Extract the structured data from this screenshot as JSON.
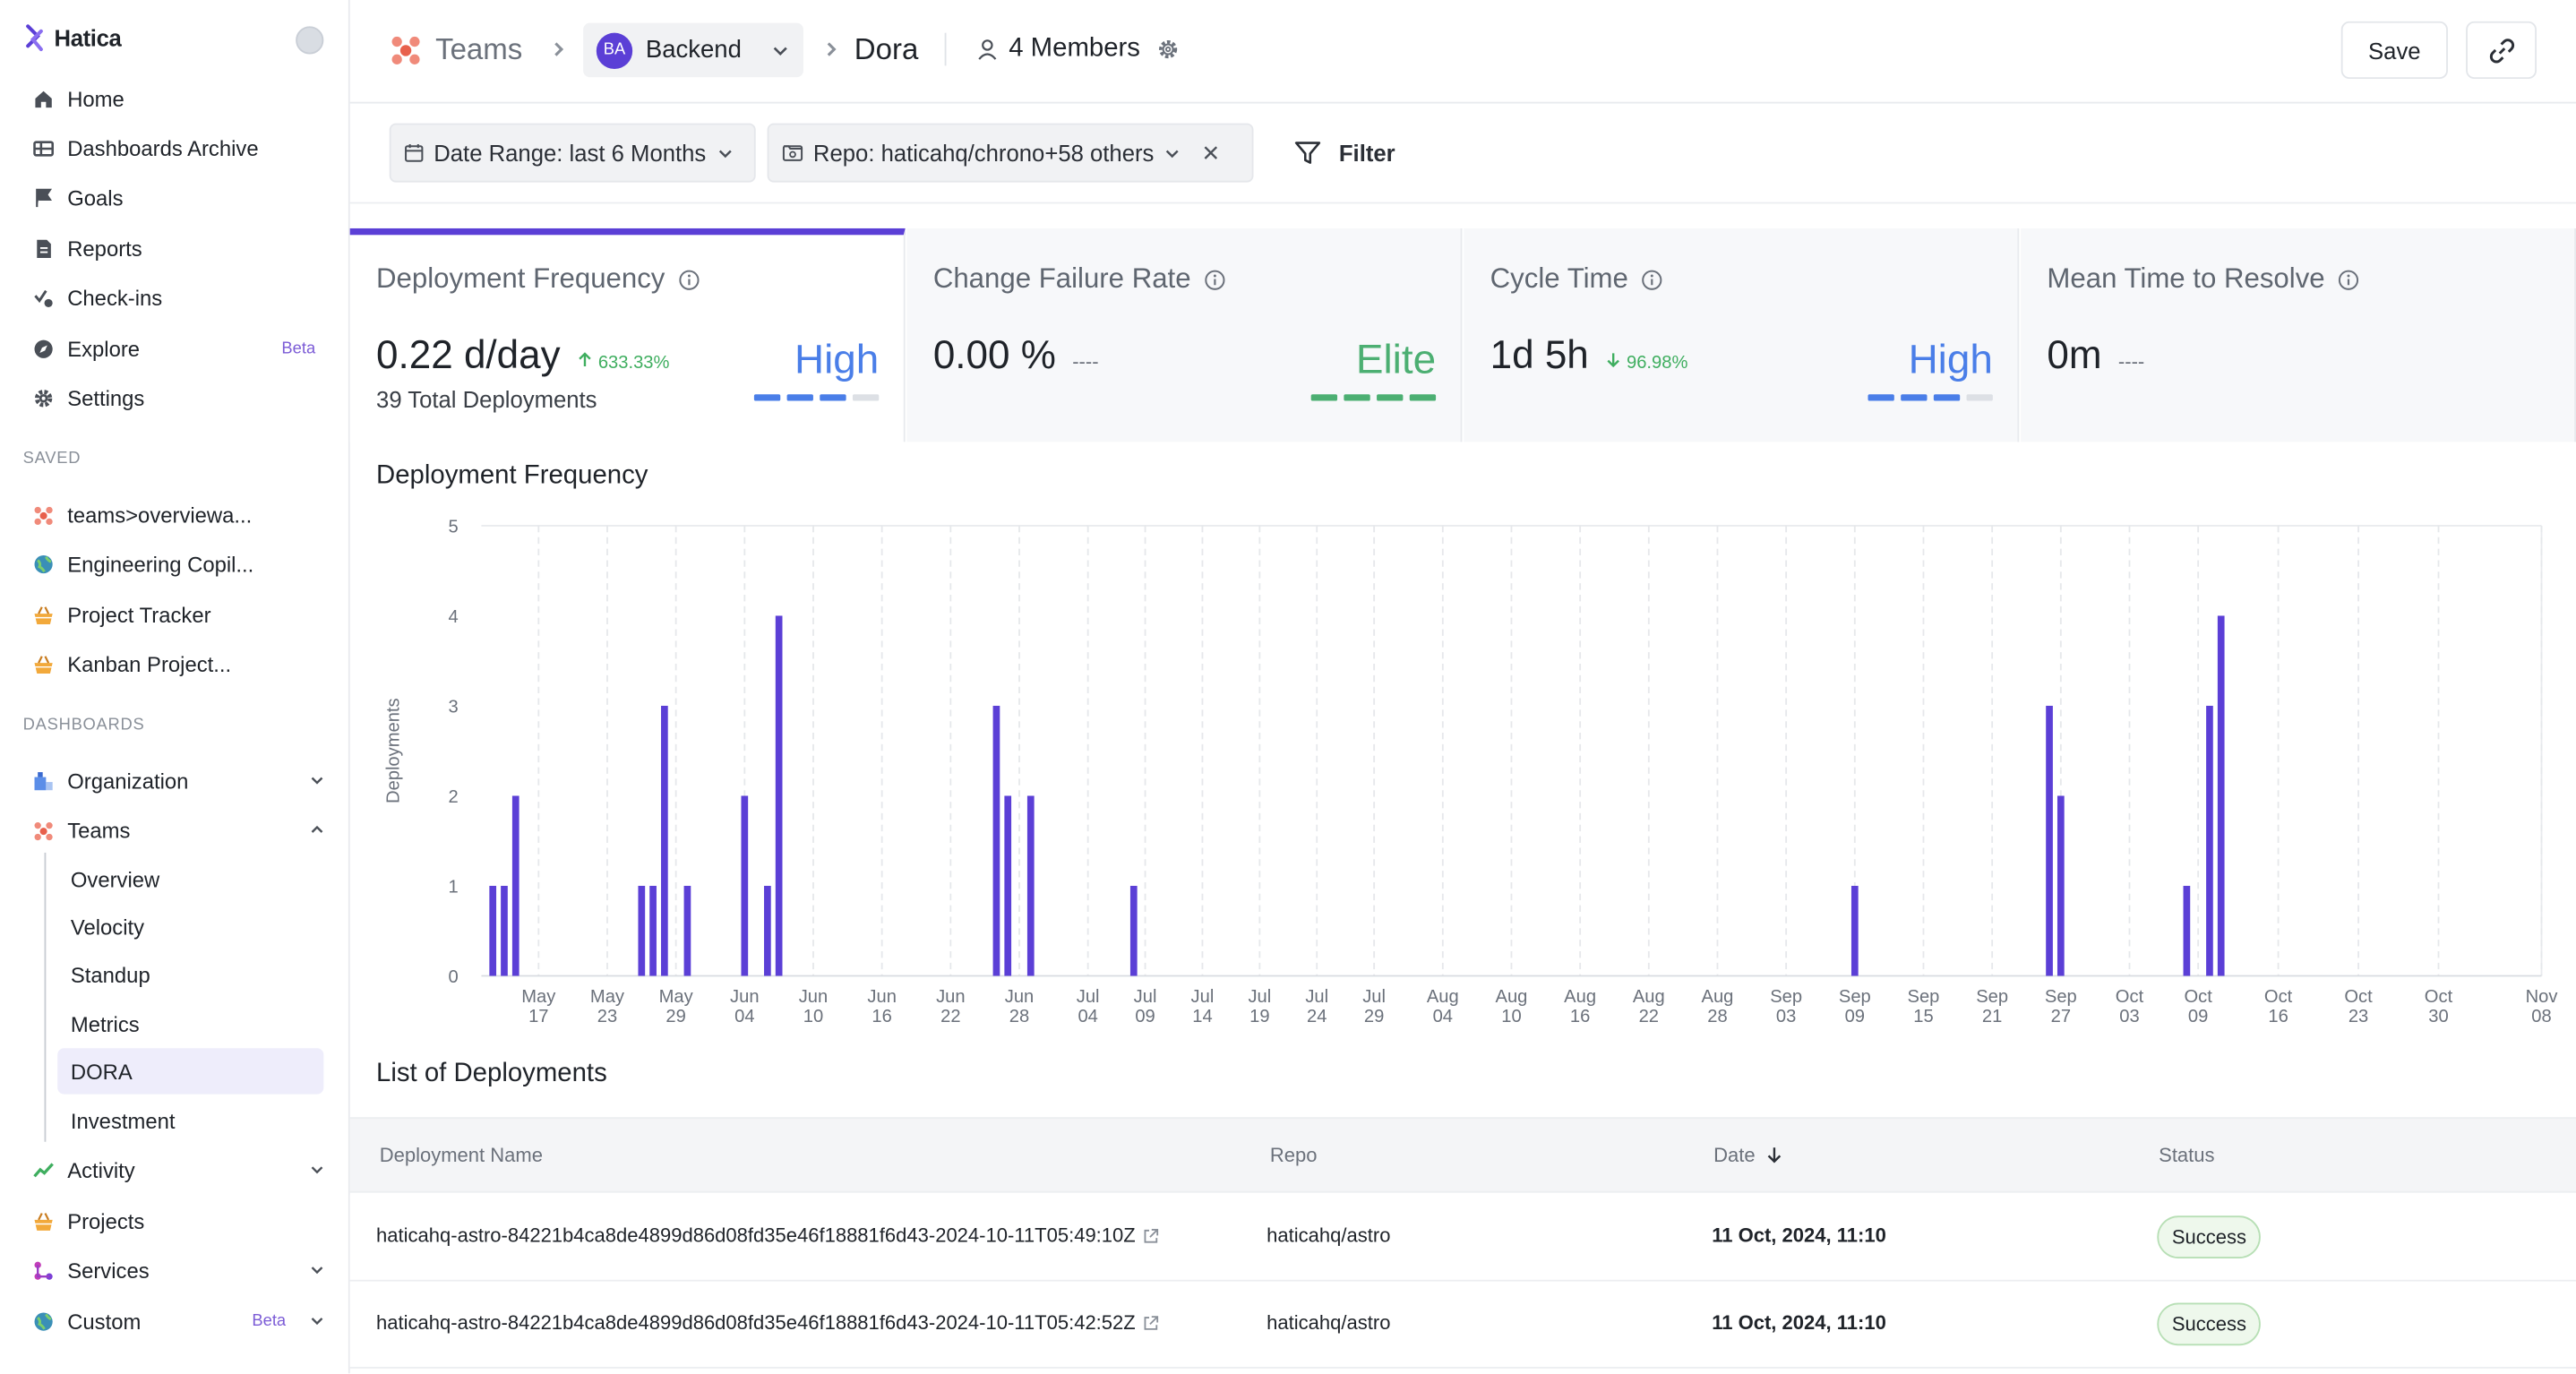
{
  "brand": {
    "name": "Hatica"
  },
  "sidebar": {
    "main_items": [
      {
        "label": "Home",
        "icon": "home-icon"
      },
      {
        "label": "Dashboards Archive",
        "icon": "archive-icon"
      },
      {
        "label": "Goals",
        "icon": "flag-icon"
      },
      {
        "label": "Reports",
        "icon": "report-icon"
      },
      {
        "label": "Check-ins",
        "icon": "checkin-icon"
      },
      {
        "label": "Explore",
        "icon": "compass-icon",
        "badge": "Beta"
      },
      {
        "label": "Settings",
        "icon": "gear-icon"
      }
    ],
    "saved_label": "SAVED",
    "saved_items": [
      {
        "label": "teams>overviewa...",
        "icon": "team-dots-icon"
      },
      {
        "label": "Engineering Copil...",
        "icon": "globe-icon"
      },
      {
        "label": "Project Tracker",
        "icon": "basket-icon"
      },
      {
        "label": "Kanban Project...",
        "icon": "basket-icon"
      }
    ],
    "dashboards_label": "DASHBOARDS",
    "dashboard_items": {
      "organization": "Organization",
      "teams": "Teams",
      "activity": "Activity",
      "projects": "Projects",
      "services": "Services",
      "custom": "Custom",
      "custom_badge": "Beta"
    },
    "teams_sub": [
      "Overview",
      "Velocity",
      "Standup",
      "Metrics",
      "DORA",
      "Investment"
    ],
    "active_sub": "DORA"
  },
  "header": {
    "teams": "Teams",
    "team_initials": "BA",
    "team_name": "Backend",
    "page": "Dora",
    "members": "4 Members",
    "save_label": "Save"
  },
  "filters": {
    "date_range": "Date Range: last 6 Months",
    "repo": "Repo: haticahq/chrono+58 others",
    "filter_label": "Filter"
  },
  "metrics": [
    {
      "title": "Deployment Frequency",
      "value": "0.22 d/day",
      "change": "633.33%",
      "change_dir": "up",
      "subtext": "39 Total Deployments",
      "level": "High",
      "level_color": "#4a7ee8",
      "filled": 3,
      "active": true
    },
    {
      "title": "Change Failure Rate",
      "value": "0.00 %",
      "change": "----",
      "change_dir": "none",
      "subtext": "",
      "level": "Elite",
      "level_color": "#4caf72",
      "filled": 4,
      "active": false
    },
    {
      "title": "Cycle Time",
      "value": "1d 5h",
      "change": "96.98%",
      "change_dir": "down",
      "subtext": "",
      "level": "High",
      "level_color": "#4a7ee8",
      "filled": 3,
      "active": false
    },
    {
      "title": "Mean Time to Resolve",
      "value": "0m",
      "change": "----",
      "change_dir": "none",
      "subtext": "",
      "level": "",
      "level_color": "",
      "filled": 0,
      "active": false
    }
  ],
  "chart_title": "Deployment Frequency",
  "chart_data": {
    "type": "bar",
    "title": "Deployment Frequency",
    "xlabel": "",
    "ylabel": "Deployments",
    "ylim": [
      0,
      5
    ],
    "yticks": [
      0,
      1,
      2,
      3,
      4,
      5
    ],
    "x_start": "2024-05-12",
    "x_end": "2024-11-08",
    "x_ticks": [
      [
        "May",
        "17"
      ],
      [
        "May",
        "23"
      ],
      [
        "May",
        "29"
      ],
      [
        "Jun",
        "04"
      ],
      [
        "Jun",
        "10"
      ],
      [
        "Jun",
        "16"
      ],
      [
        "Jun",
        "22"
      ],
      [
        "Jun",
        "28"
      ],
      [
        "Jul",
        "04"
      ],
      [
        "Jul",
        "09"
      ],
      [
        "Jul",
        "14"
      ],
      [
        "Jul",
        "19"
      ],
      [
        "Jul",
        "24"
      ],
      [
        "Jul",
        "29"
      ],
      [
        "Aug",
        "04"
      ],
      [
        "Aug",
        "10"
      ],
      [
        "Aug",
        "16"
      ],
      [
        "Aug",
        "22"
      ],
      [
        "Aug",
        "28"
      ],
      [
        "Sep",
        "03"
      ],
      [
        "Sep",
        "09"
      ],
      [
        "Sep",
        "15"
      ],
      [
        "Sep",
        "21"
      ],
      [
        "Sep",
        "27"
      ],
      [
        "Oct",
        "03"
      ],
      [
        "Oct",
        "09"
      ],
      [
        "Oct",
        "16"
      ],
      [
        "Oct",
        "23"
      ],
      [
        "Oct",
        "30"
      ],
      [
        "Nov",
        "08"
      ]
    ],
    "bars": [
      {
        "date": "2024-05-13",
        "value": 1
      },
      {
        "date": "2024-05-14",
        "value": 1
      },
      {
        "date": "2024-05-15",
        "value": 2
      },
      {
        "date": "2024-05-26",
        "value": 1
      },
      {
        "date": "2024-05-27",
        "value": 1
      },
      {
        "date": "2024-05-28",
        "value": 3
      },
      {
        "date": "2024-05-30",
        "value": 1
      },
      {
        "date": "2024-06-04",
        "value": 2
      },
      {
        "date": "2024-06-06",
        "value": 1
      },
      {
        "date": "2024-06-07",
        "value": 4
      },
      {
        "date": "2024-06-26",
        "value": 3
      },
      {
        "date": "2024-06-27",
        "value": 2
      },
      {
        "date": "2024-06-29",
        "value": 2
      },
      {
        "date": "2024-07-08",
        "value": 1
      },
      {
        "date": "2024-09-09",
        "value": 1
      },
      {
        "date": "2024-09-26",
        "value": 3
      },
      {
        "date": "2024-09-27",
        "value": 2
      },
      {
        "date": "2024-10-08",
        "value": 1
      },
      {
        "date": "2024-10-10",
        "value": 3
      },
      {
        "date": "2024-10-11",
        "value": 4
      }
    ],
    "bar_color": "#5b3fd6"
  },
  "list_title": "List of Deployments",
  "table": {
    "columns": [
      "Deployment Name",
      "Repo",
      "Date",
      "Status"
    ],
    "rows": [
      {
        "name": "haticahq-astro-84221b4ca8de4899d86d08fd35e46f18881f6d43-2024-10-11T05:49:10Z",
        "repo": "haticahq/astro",
        "date": "11 Oct, 2024, 11:10",
        "status": "Success"
      },
      {
        "name": "haticahq-astro-84221b4ca8de4899d86d08fd35e46f18881f6d43-2024-10-11T05:42:52Z",
        "repo": "haticahq/astro",
        "date": "11 Oct, 2024, 11:10",
        "status": "Success"
      }
    ]
  },
  "colors": {
    "accent": "#5b3fd6",
    "high": "#4a7ee8",
    "elite": "#4caf72",
    "up": "#3fae5f",
    "down": "#3fae5f",
    "success_bg": "#eef8ec"
  }
}
